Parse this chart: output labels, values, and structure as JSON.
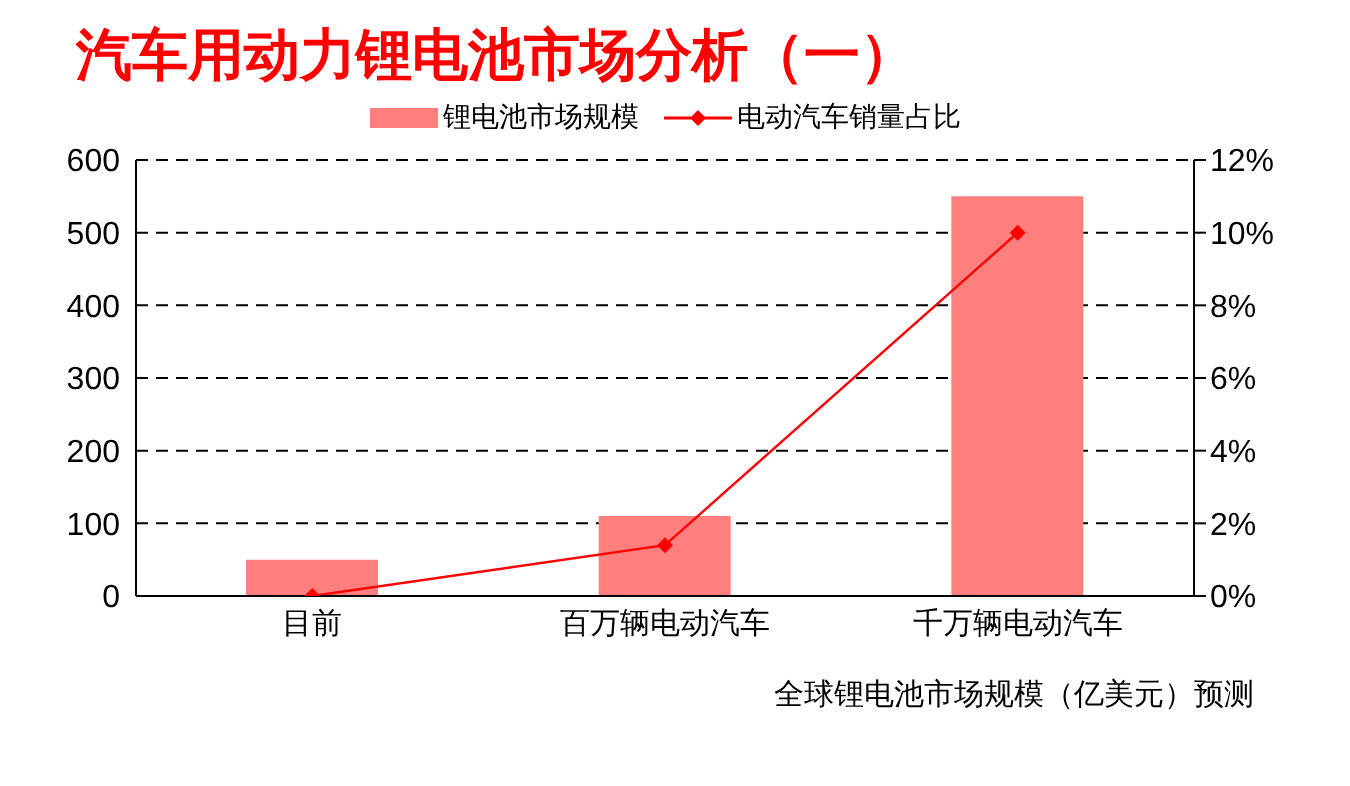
{
  "chart_data": {
    "type": "bar",
    "title": "汽车用动力锂电池市场分析（一）",
    "categories": [
      "目前",
      "百万辆电动汽车",
      "千万辆电动汽车"
    ],
    "series": [
      {
        "name": "锂电池市场规模",
        "color": "#ff7f7f",
        "values": [
          50,
          110,
          550
        ]
      },
      {
        "name": "电动汽车销量占比",
        "type": "line",
        "axis": "y2",
        "color": "#ff0000",
        "values": [
          0,
          1.4,
          10
        ]
      }
    ],
    "ylim": [
      0,
      600
    ],
    "yticks": [
      0,
      100,
      200,
      300,
      400,
      500,
      600
    ],
    "y2lim": [
      0,
      12
    ],
    "y2ticks": [
      {
        "value": 0,
        "label": "0%"
      },
      {
        "value": 2,
        "label": "2%"
      },
      {
        "value": 4,
        "label": "4%"
      },
      {
        "value": 6,
        "label": "6%"
      },
      {
        "value": 8,
        "label": "8%"
      },
      {
        "value": 10,
        "label": "10%"
      },
      {
        "value": 12,
        "label": "12%"
      }
    ],
    "grid": "y",
    "legend": "top",
    "marker": "diamond",
    "annotations": [
      "全球锂电池市场规模（亿美元）预测"
    ]
  }
}
